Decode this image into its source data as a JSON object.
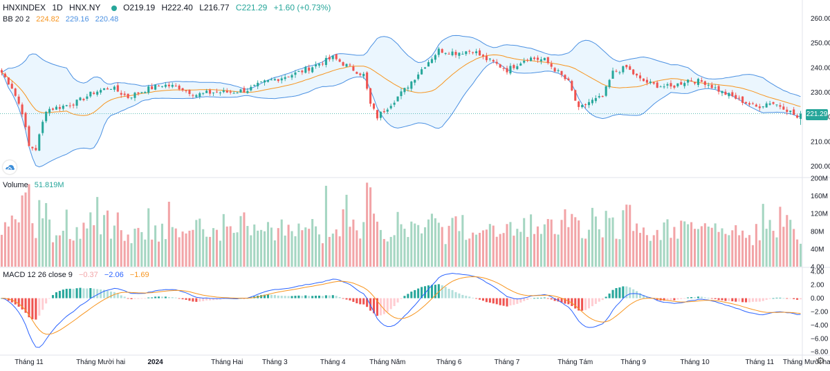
{
  "legend": {
    "symbol": "HNXINDEX",
    "interval": "1D",
    "exchange": "HNX.NY",
    "open": "O219.19",
    "high": "H222.40",
    "low": "L216.77",
    "close": "C221.29",
    "change": "+1.60 (+0.73%)",
    "bb_label": "BB 20 2",
    "bb_mid": "224.82",
    "bb_upper": "229.16",
    "bb_lower": "220.48",
    "vol_label": "Volume",
    "vol_value": "51.819M",
    "macd_label": "MACD 12 26 close 9",
    "macd_hist": "−0.37",
    "macd_line": "−2.06",
    "macd_signal": "−1.69",
    "last_price": "221.29"
  },
  "colors": {
    "up": "#26a69a",
    "down": "#ef5350",
    "up_vol": "#a5d6c2",
    "down_vol": "#f2a4a7",
    "bb_band": "#4a90e2",
    "bb_mid": "#f7941d",
    "macd_line": "#2962ff",
    "signal_line": "#f7941d"
  },
  "chart_data": [
    {
      "type": "candlestick",
      "title": "HNXINDEX 1D HNX.NY",
      "yticks": [
        200,
        210,
        220,
        230,
        240,
        250,
        260
      ],
      "ylim": [
        196,
        264
      ],
      "xticks": [
        "Tháng 11",
        "Tháng Mười hai",
        "2024",
        "Tháng Hai",
        "Tháng 3",
        "Tháng 4",
        "Tháng Năm",
        "Tháng 6",
        "Tháng 7",
        "Tháng Tám",
        "Tháng 9",
        "Tháng 10",
        "Tháng 11",
        "Tháng Mười hai"
      ],
      "xtick_bar_index": [
        8,
        29,
        45,
        66,
        80,
        97,
        113,
        131,
        148,
        168,
        185,
        203,
        222,
        236
      ],
      "close_anchors": [
        [
          0,
          238
        ],
        [
          3,
          232
        ],
        [
          6,
          222
        ],
        [
          8,
          208
        ],
        [
          10,
          207
        ],
        [
          13,
          223
        ],
        [
          17,
          224
        ],
        [
          22,
          226
        ],
        [
          27,
          230
        ],
        [
          32,
          232
        ],
        [
          37,
          228
        ],
        [
          42,
          231
        ],
        [
          47,
          233
        ],
        [
          52,
          232
        ],
        [
          57,
          229
        ],
        [
          62,
          230
        ],
        [
          67,
          230
        ],
        [
          72,
          231
        ],
        [
          77,
          234
        ],
        [
          82,
          236
        ],
        [
          87,
          238
        ],
        [
          92,
          241
        ],
        [
          97,
          244
        ],
        [
          102,
          240
        ],
        [
          106,
          237
        ],
        [
          108,
          225
        ],
        [
          110,
          220
        ],
        [
          113,
          224
        ],
        [
          118,
          231
        ],
        [
          124,
          241
        ],
        [
          128,
          247
        ],
        [
          133,
          246
        ],
        [
          138,
          247
        ],
        [
          141,
          244
        ],
        [
          144,
          242
        ],
        [
          148,
          239
        ],
        [
          154,
          244
        ],
        [
          159,
          243
        ],
        [
          163,
          238
        ],
        [
          166,
          234
        ],
        [
          169,
          223
        ],
        [
          172,
          226
        ],
        [
          176,
          228
        ],
        [
          179,
          238
        ],
        [
          183,
          240
        ],
        [
          187,
          235
        ],
        [
          191,
          233
        ],
        [
          196,
          232
        ],
        [
          201,
          235
        ],
        [
          206,
          234
        ],
        [
          211,
          230
        ],
        [
          216,
          227
        ],
        [
          221,
          224
        ],
        [
          225,
          226
        ],
        [
          229,
          224
        ],
        [
          232,
          221
        ],
        [
          233,
          219.69
        ],
        [
          234,
          221.29
        ]
      ]
    },
    {
      "type": "line",
      "title": "BB 20 2",
      "series": [
        {
          "name": "basis",
          "value_last": 224.82
        },
        {
          "name": "upper",
          "value_last": 229.16
        },
        {
          "name": "lower",
          "value_last": 220.48
        }
      ]
    },
    {
      "type": "bar",
      "title": "Volume",
      "yticks": [
        40,
        80,
        120,
        160,
        200
      ],
      "ytick_labels": [
        "40M",
        "80M",
        "120M",
        "160M",
        "200M"
      ],
      "ylim": [
        0,
        200
      ],
      "last_value_m": 51.819
    },
    {
      "type": "line",
      "title": "MACD 12 26 close 9",
      "yticks": [
        -8,
        -6,
        -4,
        -2,
        0,
        2,
        4
      ],
      "ytick_labels": [
        "−8.00",
        "−6.00",
        "−4.00",
        "−2.00",
        "0.00",
        "2.00",
        "4.00"
      ],
      "ylim": [
        -8.5,
        4.5
      ],
      "series": [
        {
          "name": "histogram",
          "value_last": -0.37
        },
        {
          "name": "macd",
          "value_last": -2.06
        },
        {
          "name": "signal",
          "value_last": -1.69
        }
      ]
    }
  ]
}
